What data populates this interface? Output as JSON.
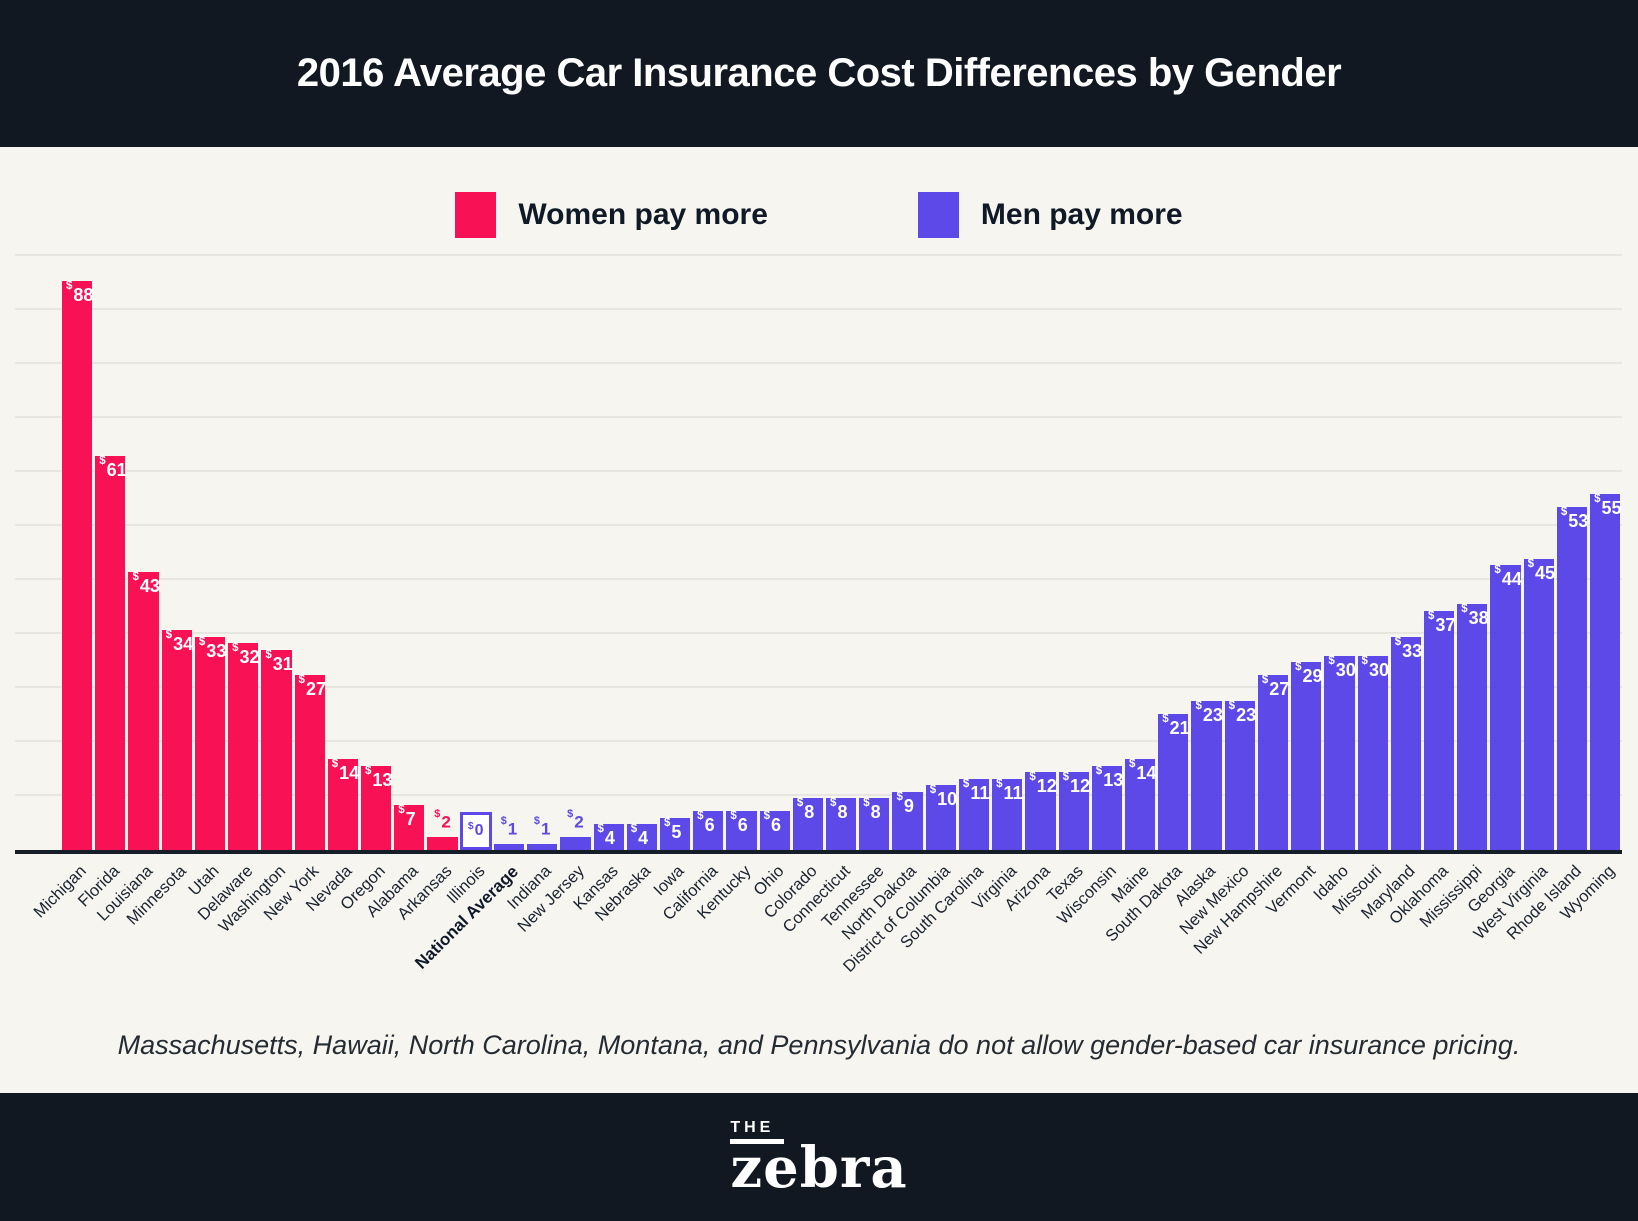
{
  "header": {
    "title": "2016 Average Car Insurance Cost Differences by Gender"
  },
  "legend": [
    {
      "label": "Women pay more",
      "color": "#F91156",
      "key": "women"
    },
    {
      "label": "Men pay more",
      "color": "#5C49E8",
      "key": "men"
    }
  ],
  "footnote": "Massachusetts, Hawaii, North Carolina, Montana, and Pennsylvania do not allow gender-based car insurance pricing.",
  "logo": {
    "the": "THE",
    "zebra": "zebra"
  },
  "colors": {
    "women": "#F91156",
    "men": "#5C49E8",
    "header_bg": "#111822",
    "page_bg": "#F6F5F0",
    "gridline": "#E7E6E1",
    "axis": "#151D29"
  },
  "chart_data": {
    "type": "bar",
    "title": "2016 Average Car Insurance Cost Differences by Gender",
    "unit": "$",
    "ylim": [
      0,
      90
    ],
    "grid": true,
    "legend_position": "top",
    "bars": [
      {
        "label": "Michigan",
        "value": 88,
        "group": "women"
      },
      {
        "label": "Florida",
        "value": 61,
        "group": "women"
      },
      {
        "label": "Louisiana",
        "value": 43,
        "group": "women"
      },
      {
        "label": "Minnesota",
        "value": 34,
        "group": "women"
      },
      {
        "label": "Utah",
        "value": 33,
        "group": "women"
      },
      {
        "label": "Delaware",
        "value": 32,
        "group": "women"
      },
      {
        "label": "Washington",
        "value": 31,
        "group": "women"
      },
      {
        "label": "New York",
        "value": 27,
        "group": "women"
      },
      {
        "label": "Nevada",
        "value": 14,
        "group": "women"
      },
      {
        "label": "Oregon",
        "value": 13,
        "group": "women"
      },
      {
        "label": "Alabama",
        "value": 7,
        "group": "women"
      },
      {
        "label": "Arkansas",
        "value": 2,
        "group": "women"
      },
      {
        "label": "Illinois",
        "value": 0,
        "group": "zero"
      },
      {
        "label": "National Average",
        "value": 1,
        "group": "men",
        "bold": true
      },
      {
        "label": "Indiana",
        "value": 1,
        "group": "men"
      },
      {
        "label": "New Jersey",
        "value": 2,
        "group": "men"
      },
      {
        "label": "Kansas",
        "value": 4,
        "group": "men"
      },
      {
        "label": "Nebraska",
        "value": 4,
        "group": "men"
      },
      {
        "label": "Iowa",
        "value": 5,
        "group": "men"
      },
      {
        "label": "California",
        "value": 6,
        "group": "men"
      },
      {
        "label": "Kentucky",
        "value": 6,
        "group": "men"
      },
      {
        "label": "Ohio",
        "value": 6,
        "group": "men"
      },
      {
        "label": "Colorado",
        "value": 8,
        "group": "men"
      },
      {
        "label": "Connecticut",
        "value": 8,
        "group": "men"
      },
      {
        "label": "Tennessee",
        "value": 8,
        "group": "men"
      },
      {
        "label": "North Dakota",
        "value": 9,
        "group": "men"
      },
      {
        "label": "District of Columbia",
        "value": 10,
        "group": "men"
      },
      {
        "label": "South Carolina",
        "value": 11,
        "group": "men"
      },
      {
        "label": "Virginia",
        "value": 11,
        "group": "men"
      },
      {
        "label": "Arizona",
        "value": 12,
        "group": "men"
      },
      {
        "label": "Texas",
        "value": 12,
        "group": "men"
      },
      {
        "label": "Wisconsin",
        "value": 13,
        "group": "men"
      },
      {
        "label": "Maine",
        "value": 14,
        "group": "men"
      },
      {
        "label": "South Dakota",
        "value": 21,
        "group": "men"
      },
      {
        "label": "Alaska",
        "value": 23,
        "group": "men"
      },
      {
        "label": "New Mexico",
        "value": 23,
        "group": "men"
      },
      {
        "label": "New Hampshire",
        "value": 27,
        "group": "men"
      },
      {
        "label": "Vermont",
        "value": 29,
        "group": "men"
      },
      {
        "label": "Idaho",
        "value": 30,
        "group": "men"
      },
      {
        "label": "Missouri",
        "value": 30,
        "group": "men"
      },
      {
        "label": "Maryland",
        "value": 33,
        "group": "men"
      },
      {
        "label": "Oklahoma",
        "value": 37,
        "group": "men"
      },
      {
        "label": "Mississippi",
        "value": 38,
        "group": "men"
      },
      {
        "label": "Georgia",
        "value": 44,
        "group": "men"
      },
      {
        "label": "West Virginia",
        "value": 45,
        "group": "men"
      },
      {
        "label": "Rhode Island",
        "value": 53,
        "group": "men"
      },
      {
        "label": "Wyoming",
        "value": 55,
        "group": "men"
      }
    ]
  }
}
